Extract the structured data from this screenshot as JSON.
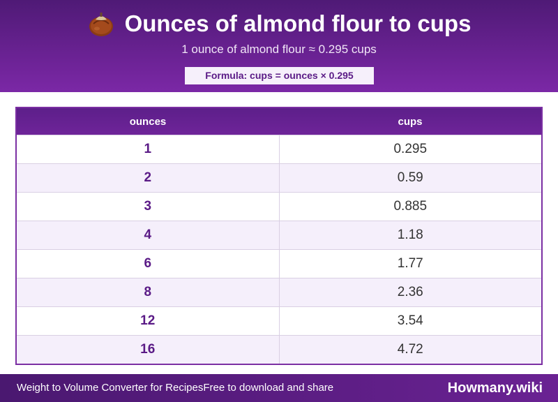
{
  "header": {
    "icon": "chestnut-icon",
    "title": "Ounces of almond flour to cups",
    "subtitle": "1 ounce of almond flour ≈ 0.295 cups",
    "formula": "Formula: cups = ounces × 0.295"
  },
  "table": {
    "columns": [
      "ounces",
      "cups"
    ],
    "rows": [
      {
        "ounces": "1",
        "cups": "0.295"
      },
      {
        "ounces": "2",
        "cups": "0.59"
      },
      {
        "ounces": "3",
        "cups": "0.885"
      },
      {
        "ounces": "4",
        "cups": "1.18"
      },
      {
        "ounces": "6",
        "cups": "1.77"
      },
      {
        "ounces": "8",
        "cups": "2.36"
      },
      {
        "ounces": "12",
        "cups": "3.54"
      },
      {
        "ounces": "16",
        "cups": "4.72"
      }
    ]
  },
  "footer": {
    "left_text": "Weight to Volume Converter for Recipes",
    "middle_text": "Free to download and share",
    "brand": "Howmany.wiki"
  },
  "colors": {
    "brand_purple": "#6a2293",
    "accent_text": "#5a1a86"
  }
}
